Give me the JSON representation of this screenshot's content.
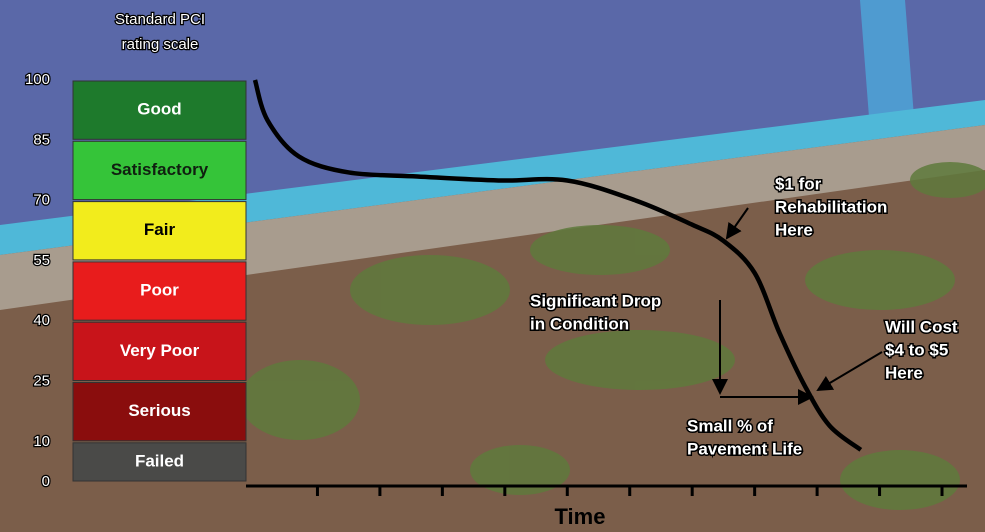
{
  "chart_data": {
    "type": "line",
    "scale_title": [
      "Standard PCI",
      "rating scale"
    ],
    "x_label": "Time",
    "ylim": [
      0,
      100
    ],
    "yticks": [
      0,
      10,
      25,
      40,
      55,
      70,
      85,
      100
    ],
    "xlim": [
      0,
      11.4
    ],
    "xticks": [
      1,
      2,
      3,
      4,
      5,
      6,
      7,
      8,
      9,
      10,
      11
    ],
    "bands": [
      {
        "label": "Good",
        "from": 85,
        "to": 100,
        "color": "#1e7a2c",
        "text_color": "#ffffff"
      },
      {
        "label": "Satisfactory",
        "from": 70,
        "to": 85,
        "color": "#35c439",
        "text_color": "#102010"
      },
      {
        "label": "Fair",
        "from": 55,
        "to": 70,
        "color": "#f2ec1c",
        "text_color": "#000000"
      },
      {
        "label": "Poor",
        "from": 40,
        "to": 55,
        "color": "#e81c1c",
        "text_color": "#ffffff"
      },
      {
        "label": "Very Poor",
        "from": 25,
        "to": 40,
        "color": "#c8141a",
        "text_color": "#ffffff"
      },
      {
        "label": "Serious",
        "from": 10,
        "to": 25,
        "color": "#8a0d0d",
        "text_color": "#ffffff"
      },
      {
        "label": "Failed",
        "from": 0,
        "to": 10,
        "color": "#4a4a48",
        "text_color": "#ffffff"
      }
    ],
    "series": [
      {
        "color": "#000000",
        "x": [
          0,
          0.2,
          0.7,
          1.5,
          2.6,
          3.9,
          5,
          6.1,
          7,
          7.5,
          8,
          8.4,
          8.8,
          9.2,
          9.7
        ],
        "values": [
          100,
          90,
          81,
          77,
          76,
          75,
          75,
          70,
          64,
          60,
          52,
          37,
          24,
          14,
          8
        ]
      }
    ],
    "annotations": [
      {
        "lines": [
          "$1 for",
          "Rehabilitation",
          "Here"
        ]
      },
      {
        "lines": [
          "Significant Drop",
          "in Condition"
        ]
      },
      {
        "lines": [
          "Small % of",
          "Pavement Life"
        ]
      },
      {
        "lines": [
          "Will Cost",
          "$4 to $5",
          "Here"
        ]
      }
    ]
  }
}
